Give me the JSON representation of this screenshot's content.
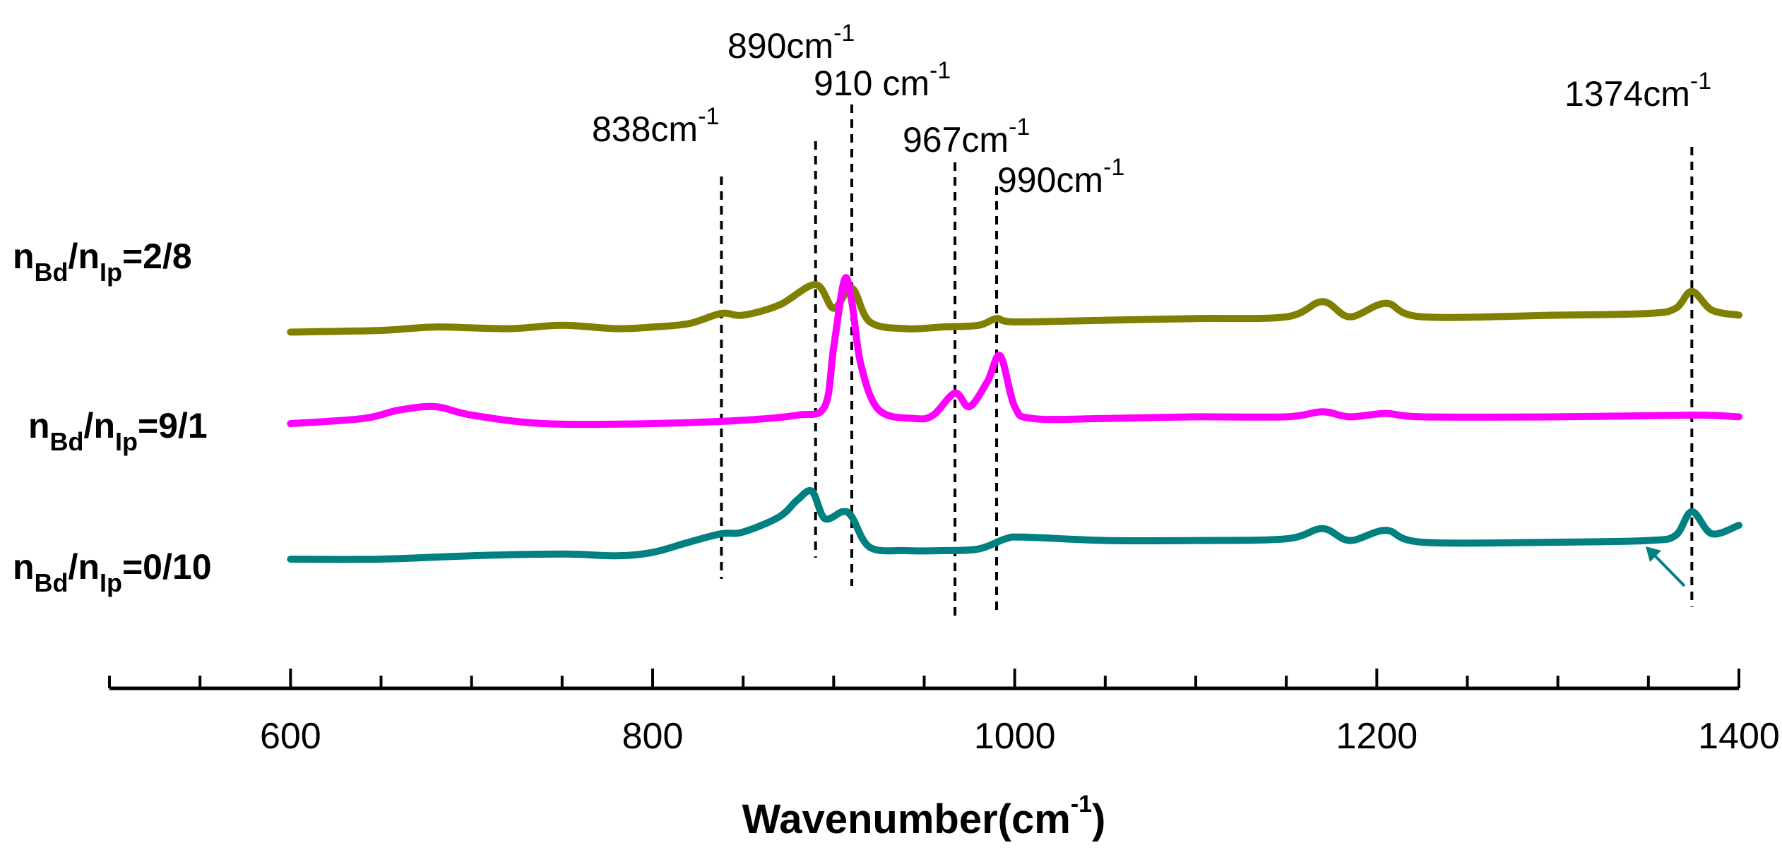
{
  "chart_data": {
    "type": "line",
    "title": "",
    "xlabel": "Wavenumber(cm",
    "xlabel_sup": "-1",
    "xlabel_close": ")",
    "ylabel": "",
    "xlim": [
      500,
      1400
    ],
    "x_ticks": [
      600,
      800,
      1000,
      1200,
      1400
    ],
    "x_tick_labels": [
      "600",
      "800",
      "1000",
      "1200",
      "1400"
    ],
    "series": [
      {
        "name": "nBd/nIp=2/8",
        "label_parts": {
          "a": "n",
          "a_sub": "Bd",
          "mid": "/n",
          "b_sub": "Ip",
          "ratio": "=2/8"
        },
        "color": "#7f7f00",
        "x": [
          600,
          650,
          680,
          720,
          750,
          780,
          800,
          820,
          838,
          850,
          870,
          890,
          900,
          910,
          920,
          940,
          960,
          980,
          990,
          1000,
          1050,
          1100,
          1150,
          1170,
          1185,
          1205,
          1225,
          1300,
          1350,
          1365,
          1374,
          1385,
          1400
        ],
        "y": [
          0.44,
          0.45,
          0.47,
          0.46,
          0.48,
          0.46,
          0.47,
          0.49,
          0.55,
          0.54,
          0.6,
          0.72,
          0.58,
          0.7,
          0.5,
          0.46,
          0.47,
          0.48,
          0.52,
          0.5,
          0.51,
          0.52,
          0.53,
          0.62,
          0.53,
          0.61,
          0.53,
          0.54,
          0.55,
          0.58,
          0.68,
          0.57,
          0.54
        ]
      },
      {
        "name": "nBd/nIp=9/1",
        "label_parts": {
          "a": "n",
          "a_sub": "Bd",
          "mid": "/n",
          "b_sub": "Ip",
          "ratio": "=9/1"
        },
        "color": "#ff00ff",
        "x": [
          600,
          640,
          660,
          680,
          700,
          740,
          800,
          850,
          880,
          895,
          900,
          906,
          910,
          915,
          925,
          945,
          955,
          967,
          975,
          985,
          992,
          1000,
          1010,
          1050,
          1100,
          1150,
          1170,
          1185,
          1205,
          1225,
          1300,
          1374,
          1400
        ],
        "y": [
          0.1,
          0.13,
          0.18,
          0.2,
          0.15,
          0.1,
          0.1,
          0.12,
          0.15,
          0.2,
          0.55,
          0.95,
          0.82,
          0.45,
          0.18,
          0.13,
          0.15,
          0.28,
          0.2,
          0.35,
          0.5,
          0.2,
          0.13,
          0.13,
          0.14,
          0.14,
          0.17,
          0.14,
          0.16,
          0.14,
          0.14,
          0.15,
          0.14
        ]
      },
      {
        "name": "nBd/nIp=0/10",
        "label_parts": {
          "a": "n",
          "a_sub": "Bd",
          "mid": "/n",
          "b_sub": "Ip",
          "ratio": "=0/10"
        },
        "color": "#008080",
        "x": [
          600,
          650,
          700,
          750,
          780,
          800,
          820,
          838,
          850,
          870,
          880,
          888,
          895,
          905,
          910,
          920,
          940,
          960,
          980,
          995,
          1005,
          1050,
          1100,
          1150,
          1170,
          1185,
          1205,
          1225,
          1300,
          1350,
          1365,
          1374,
          1385,
          1400
        ],
        "y": [
          -0.3,
          -0.3,
          -0.28,
          -0.27,
          -0.28,
          -0.26,
          -0.2,
          -0.15,
          -0.14,
          -0.05,
          0.05,
          0.1,
          -0.06,
          -0.02,
          -0.05,
          -0.23,
          -0.25,
          -0.25,
          -0.24,
          -0.18,
          -0.17,
          -0.19,
          -0.19,
          -0.18,
          -0.12,
          -0.19,
          -0.13,
          -0.2,
          -0.2,
          -0.19,
          -0.16,
          -0.02,
          -0.15,
          -0.1
        ]
      }
    ],
    "annotations": [
      {
        "label": "838cm",
        "sup": "-1",
        "x": 838
      },
      {
        "label": "890cm",
        "sup": "-1",
        "x": 890
      },
      {
        "label": "910 cm",
        "sup": "-1",
        "x": 910
      },
      {
        "label": "967cm",
        "sup": "-1",
        "x": 967
      },
      {
        "label": "990cm",
        "sup": "-1",
        "x": 990
      },
      {
        "label": "1374cm",
        "sup": "-1",
        "x": 1374
      }
    ],
    "grid": false,
    "legend": "left-labels"
  }
}
